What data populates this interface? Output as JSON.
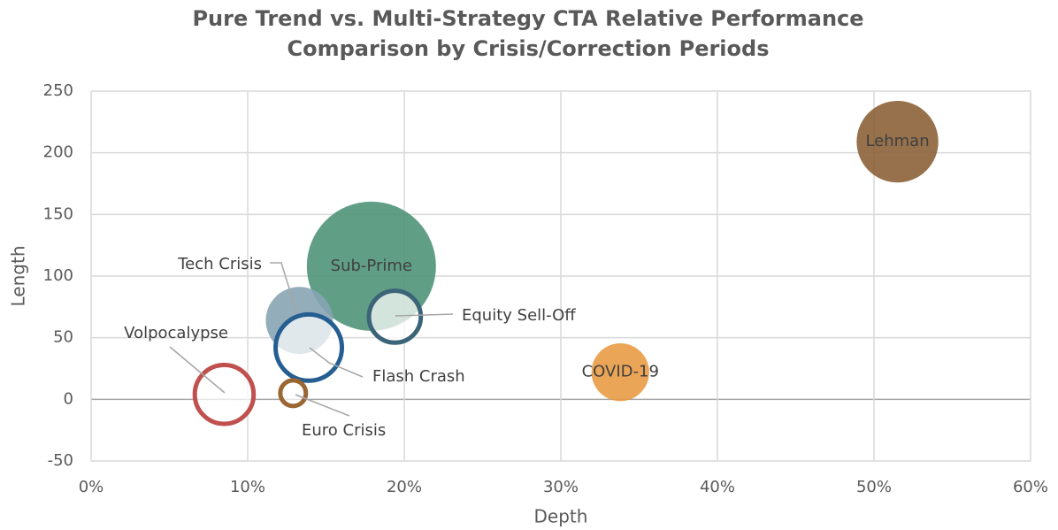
{
  "chart_data": {
    "type": "bubble",
    "title": [
      "Pure Trend vs. Multi-Strategy CTA Relative Performance",
      "Comparison by Crisis/Correction Periods"
    ],
    "x_label": "Depth",
    "y_label": "Length",
    "xlim": [
      0,
      60
    ],
    "xticks": [
      {
        "value": 0,
        "label": "0%"
      },
      {
        "value": 10,
        "label": "10%"
      },
      {
        "value": 20,
        "label": "20%"
      },
      {
        "value": 30,
        "label": "30%"
      },
      {
        "value": 40,
        "label": "40%"
      },
      {
        "value": 50,
        "label": "50%"
      },
      {
        "value": 60,
        "label": "60%"
      }
    ],
    "ylim": [
      -50,
      250
    ],
    "yticks": [
      -50,
      0,
      50,
      100,
      150,
      200,
      250
    ],
    "grid": true,
    "series": [
      {
        "name": "Lehman",
        "color": "#8c6239",
        "filled": true,
        "x": [
          51.5
        ],
        "values": [
          209
        ],
        "sizes": [
          40
        ]
      },
      {
        "name": "Sub-Prime",
        "color": "#4f9478",
        "filled": true,
        "x": [
          17.9
        ],
        "values": [
          108
        ],
        "sizes": [
          100
        ]
      },
      {
        "name": "Tech Crisis",
        "color": "#87a4b4",
        "filled": true,
        "x": [
          13.3
        ],
        "values": [
          64
        ],
        "sizes": [
          27
        ]
      },
      {
        "name": "Flash Crash",
        "color": "#255e91",
        "filled": false,
        "x": [
          13.9
        ],
        "values": [
          42
        ],
        "sizes": [
          30
        ]
      },
      {
        "name": "Equity Sell-Off",
        "color": "#3b6478",
        "filled": false,
        "x": [
          19.4
        ],
        "values": [
          67
        ],
        "sizes": [
          19
        ]
      },
      {
        "name": "COVID-19",
        "color": "#e89b45",
        "filled": true,
        "x": [
          33.8
        ],
        "values": [
          22
        ],
        "sizes": [
          20
        ]
      },
      {
        "name": "Volpocalypse",
        "color": "#c0504d",
        "filled": false,
        "x": [
          8.5
        ],
        "values": [
          4
        ],
        "sizes": [
          24
        ]
      },
      {
        "name": "Euro Crisis",
        "color": "#9a6632",
        "filled": false,
        "x": [
          12.9
        ],
        "values": [
          5
        ],
        "sizes": [
          5.4
        ]
      }
    ]
  }
}
